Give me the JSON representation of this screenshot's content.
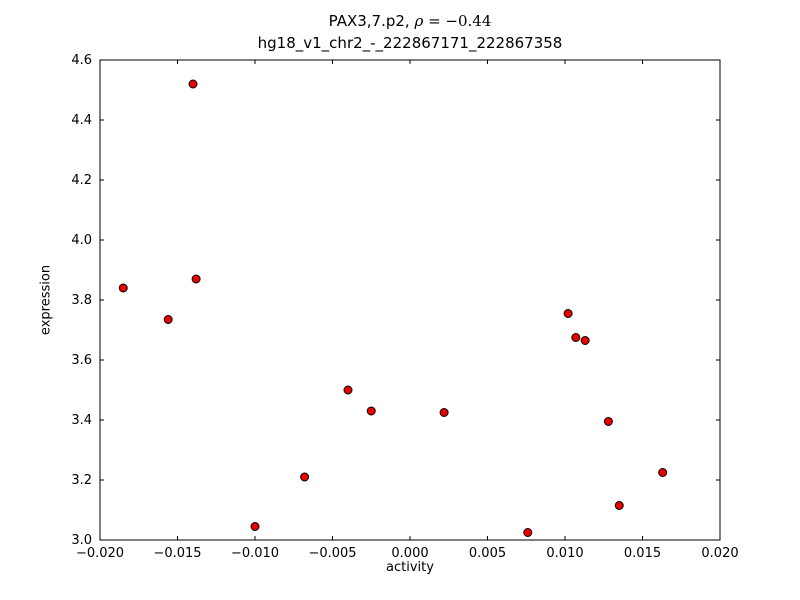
{
  "chart_data": {
    "type": "scatter",
    "title_prefix": "PAX3,7.p2, ",
    "title_math_var": "ρ",
    "title_math_rest": " = −0.44",
    "subtitle": "hg18_v1_chr2_-_222867171_222867358",
    "xlabel": "activity",
    "ylabel": "expression",
    "xlim": [
      -0.02,
      0.02
    ],
    "ylim": [
      3.0,
      4.6
    ],
    "grid": false,
    "legend": "none",
    "axis_color": "#000000",
    "marker_color": "#e60000",
    "marker_edge_color": "#000000",
    "marker_radius": 4,
    "xticks": [
      {
        "value": -0.02,
        "label": "−0.020"
      },
      {
        "value": -0.015,
        "label": "−0.015"
      },
      {
        "value": -0.01,
        "label": "−0.010"
      },
      {
        "value": -0.005,
        "label": "−0.005"
      },
      {
        "value": 0.0,
        "label": "0.000"
      },
      {
        "value": 0.005,
        "label": "0.005"
      },
      {
        "value": 0.01,
        "label": "0.010"
      },
      {
        "value": 0.015,
        "label": "0.015"
      },
      {
        "value": 0.02,
        "label": "0.020"
      }
    ],
    "yticks": [
      {
        "value": 3.0,
        "label": "3.0"
      },
      {
        "value": 3.2,
        "label": "3.2"
      },
      {
        "value": 3.4,
        "label": "3.4"
      },
      {
        "value": 3.6,
        "label": "3.6"
      },
      {
        "value": 3.8,
        "label": "3.8"
      },
      {
        "value": 4.0,
        "label": "4.0"
      },
      {
        "value": 4.2,
        "label": "4.2"
      },
      {
        "value": 4.4,
        "label": "4.4"
      },
      {
        "value": 4.6,
        "label": "4.6"
      }
    ],
    "points": [
      [
        -0.0185,
        3.84
      ],
      [
        -0.0156,
        3.735
      ],
      [
        -0.014,
        4.52
      ],
      [
        -0.0138,
        3.87
      ],
      [
        -0.01,
        3.045
      ],
      [
        -0.0068,
        3.21
      ],
      [
        -0.004,
        3.5
      ],
      [
        -0.0025,
        3.43
      ],
      [
        0.0022,
        3.425
      ],
      [
        0.0076,
        3.025
      ],
      [
        0.0102,
        3.755
      ],
      [
        0.0107,
        3.675
      ],
      [
        0.0113,
        3.665
      ],
      [
        0.0128,
        3.395
      ],
      [
        0.0135,
        3.115
      ],
      [
        0.0163,
        3.225
      ]
    ]
  }
}
